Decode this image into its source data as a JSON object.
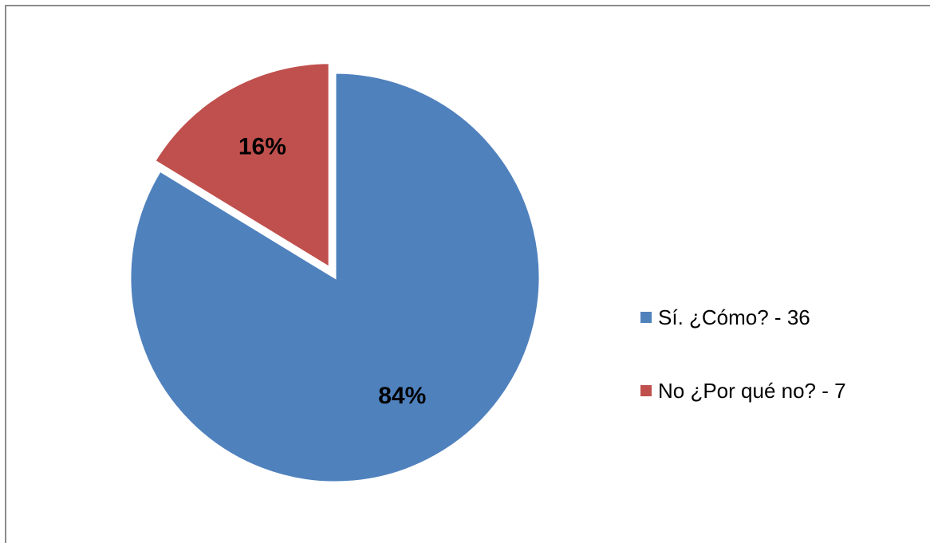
{
  "chart_data": {
    "type": "pie",
    "title": "",
    "slices": [
      {
        "label": "Sí. ¿Cómo? - 36",
        "value": 36,
        "percent_label": "84%",
        "color": "#4f81bd",
        "exploded": false
      },
      {
        "label": "No ¿Por qué no? - 7",
        "value": 7,
        "percent_label": "16%",
        "color": "#c0504d",
        "exploded": true
      }
    ],
    "start_angle_deg": 0,
    "direction": "clockwise",
    "legend_position": "right"
  }
}
